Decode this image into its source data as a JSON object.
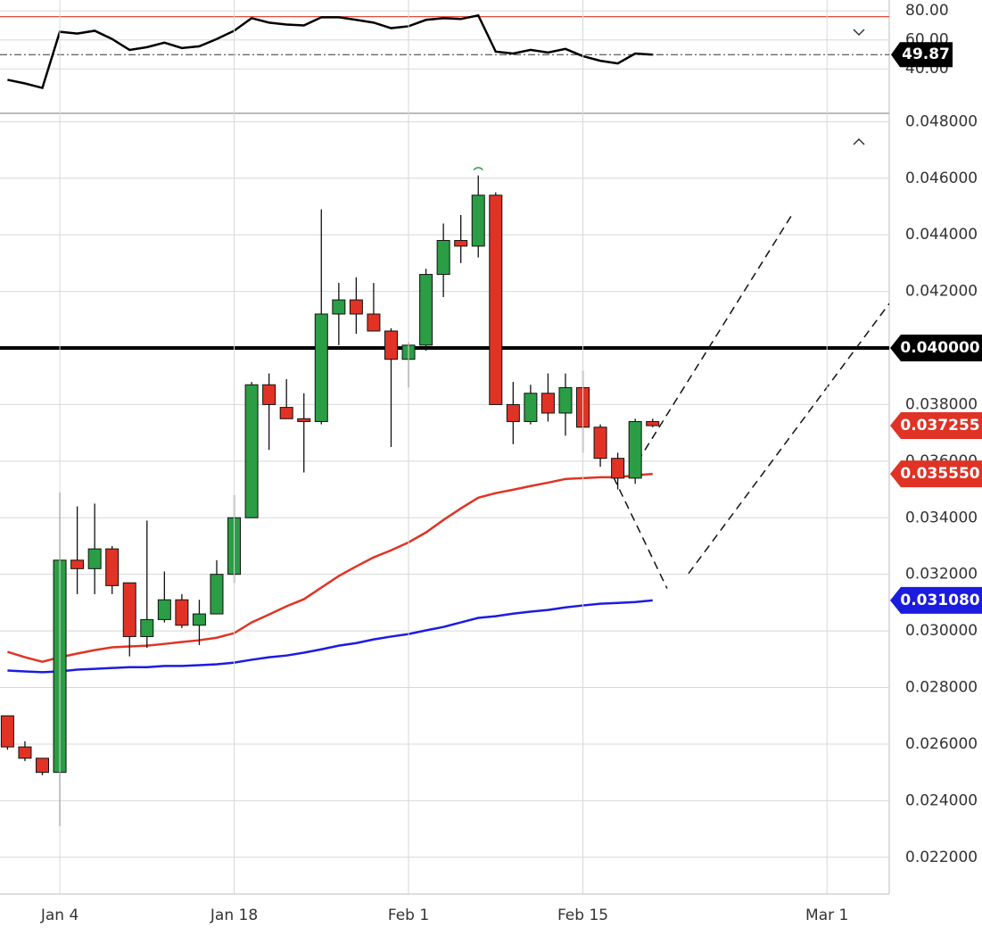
{
  "chart_data": [
    {
      "type": "line",
      "x": [
        -3,
        -2,
        -1,
        0,
        1,
        2,
        3,
        4,
        5,
        6,
        7,
        8,
        9,
        10,
        11,
        12,
        13,
        14,
        15,
        16,
        17,
        18,
        19,
        20,
        21,
        22,
        23,
        24,
        25,
        26,
        27,
        28,
        29,
        30,
        31,
        32,
        33,
        34
      ],
      "series": [
        {
          "color": "#000000",
          "values": [
            32.5,
            30.0,
            26.9,
            65.6,
            64.4,
            66.3,
            60.6,
            53.1,
            55.0,
            58.1,
            54.4,
            55.6,
            60.6,
            66.3,
            75.0,
            71.9,
            70.6,
            70.0,
            75.6,
            75.6,
            73.8,
            71.9,
            68.1,
            69.4,
            73.8,
            75.0,
            74.4,
            76.9,
            51.9,
            50.6,
            53.1,
            51.3,
            53.8,
            48.8,
            45.6,
            43.8,
            50.6,
            49.87
          ]
        }
      ],
      "ylim": [
        9.4,
        87.5
      ],
      "yticks": [
        {
          "value": 40,
          "label": "40.00"
        },
        {
          "value": 60,
          "label": "60.00"
        },
        {
          "value": 80,
          "label": "80.00"
        }
      ],
      "level": {
        "value": 76,
        "color": "#e03325"
      },
      "current": 49.87
    },
    {
      "type": "candlestick",
      "x": [
        -3,
        -2,
        -1,
        0,
        1,
        2,
        3,
        4,
        5,
        6,
        7,
        8,
        9,
        10,
        11,
        12,
        13,
        14,
        15,
        16,
        17,
        18,
        19,
        20,
        21,
        22,
        23,
        24,
        25,
        26,
        27,
        28,
        29,
        30,
        31,
        32,
        33,
        34
      ],
      "open": [
        0.027,
        0.0259,
        0.0255,
        0.025,
        0.0325,
        0.0322,
        0.0329,
        0.0317,
        0.0298,
        0.0304,
        0.0311,
        0.0302,
        0.0306,
        0.032,
        0.034,
        0.0387,
        0.0379,
        0.0375,
        0.0374,
        0.0412,
        0.0417,
        0.0412,
        0.0406,
        0.0396,
        0.0401,
        0.0426,
        0.0438,
        0.0436,
        0.0454,
        0.038,
        0.0374,
        0.0384,
        0.0377,
        0.0386,
        0.0372,
        0.0361,
        0.0354,
        0.0374
      ],
      "high": [
        0.027,
        0.0261,
        0.0255,
        0.0349,
        0.0344,
        0.0345,
        0.033,
        0.0317,
        0.0339,
        0.0321,
        0.0313,
        0.0311,
        0.0325,
        0.0348,
        0.0388,
        0.0391,
        0.0389,
        0.0384,
        0.0449,
        0.0423,
        0.0425,
        0.0423,
        0.0407,
        0.0402,
        0.0428,
        0.0444,
        0.0447,
        0.0461,
        0.0455,
        0.0388,
        0.0387,
        0.0391,
        0.0391,
        0.0392,
        0.0373,
        0.0363,
        0.0375,
        0.0375
      ],
      "low": [
        0.0258,
        0.0254,
        0.0249,
        0.0231,
        0.0313,
        0.0313,
        0.0313,
        0.0291,
        0.0294,
        0.0303,
        0.0301,
        0.0295,
        0.0306,
        0.0317,
        0.034,
        0.0364,
        0.0375,
        0.0356,
        0.0373,
        0.0401,
        0.0405,
        0.0406,
        0.0365,
        0.0386,
        0.0399,
        0.0418,
        0.043,
        0.0432,
        0.038,
        0.0366,
        0.0373,
        0.0374,
        0.0369,
        0.0363,
        0.0358,
        0.035,
        0.0352,
        0.0372
      ],
      "close": [
        0.0259,
        0.0255,
        0.025,
        0.0325,
        0.0322,
        0.0329,
        0.0316,
        0.0298,
        0.0304,
        0.0311,
        0.0302,
        0.0306,
        0.032,
        0.034,
        0.0387,
        0.038,
        0.0375,
        0.0374,
        0.0412,
        0.0417,
        0.0412,
        0.0406,
        0.0396,
        0.0401,
        0.0426,
        0.0438,
        0.0436,
        0.0454,
        0.038,
        0.0374,
        0.0384,
        0.0377,
        0.0386,
        0.0372,
        0.0361,
        0.0354,
        0.0374,
        0.037255
      ],
      "up_color": "#2a9d45",
      "down_color": "#e03325",
      "series": [
        {
          "color": "#e03325",
          "values": [
            0.02926,
            0.02907,
            0.02891,
            0.02907,
            0.0292,
            0.02932,
            0.02942,
            0.02945,
            0.02948,
            0.02954,
            0.02961,
            0.02967,
            0.02976,
            0.02992,
            0.0303,
            0.03058,
            0.03087,
            0.03112,
            0.03153,
            0.03194,
            0.03228,
            0.0326,
            0.03285,
            0.03313,
            0.03348,
            0.03392,
            0.03433,
            0.03471,
            0.03487,
            0.03499,
            0.03512,
            0.03524,
            0.03537,
            0.0354,
            0.03543,
            0.03543,
            0.0355,
            0.03555
          ]
        },
        {
          "color": "#1c1ce0",
          "values": [
            0.0286,
            0.02857,
            0.02854,
            0.02857,
            0.02863,
            0.02866,
            0.02869,
            0.02872,
            0.02872,
            0.02876,
            0.02876,
            0.02879,
            0.02882,
            0.02888,
            0.02898,
            0.02907,
            0.02913,
            0.02923,
            0.02935,
            0.02948,
            0.02957,
            0.0297,
            0.0298,
            0.02989,
            0.03002,
            0.03014,
            0.0303,
            0.03046,
            0.03052,
            0.03061,
            0.03068,
            0.03074,
            0.03083,
            0.0309,
            0.03096,
            0.03099,
            0.03102,
            0.03108
          ]
        }
      ],
      "price_lines": [
        {
          "value": 0.04,
          "label": "0.040000",
          "color": "#000000",
          "line": true
        },
        {
          "value": 0.037255,
          "label": "0.037255",
          "color": "#e03325",
          "line": false
        },
        {
          "value": 0.03555,
          "label": "0.035550",
          "color": "#e03325",
          "line": false
        },
        {
          "value": 0.03108,
          "label": "0.031080",
          "color": "#1c1ce0",
          "line": false
        }
      ],
      "trend_lines": [
        {
          "x": [
            32.74,
            41.94
          ],
          "y": [
            0.03559,
            0.04466
          ]
        },
        {
          "x": [
            31.76,
            34.83
          ],
          "y": [
            0.03543,
            0.0315
          ]
        },
        {
          "x": [
            36.06,
            47.57
          ],
          "y": [
            0.03203,
            0.04157
          ]
        }
      ],
      "xlim": [
        -3.43,
        47.57
      ],
      "ylim": [
        0.0207,
        0.0482
      ],
      "xticks": [
        {
          "value": 0,
          "label": "Jan 4"
        },
        {
          "value": 10,
          "label": "Jan 18"
        },
        {
          "value": 20,
          "label": "Feb 1"
        },
        {
          "value": 30,
          "label": "Feb 15"
        },
        {
          "value": 44,
          "label": "Mar 1"
        }
      ],
      "yticks": [
        {
          "value": 0.022,
          "label": "0.022000"
        },
        {
          "value": 0.024,
          "label": "0.024000"
        },
        {
          "value": 0.026,
          "label": "0.026000"
        },
        {
          "value": 0.028,
          "label": "0.028000"
        },
        {
          "value": 0.03,
          "label": "0.030000"
        },
        {
          "value": 0.032,
          "label": "0.032000"
        },
        {
          "value": 0.034,
          "label": "0.034000"
        },
        {
          "value": 0.036,
          "label": "0.036000"
        },
        {
          "value": 0.038,
          "label": "0.038000"
        },
        {
          "value": 0.04,
          "label": "0.040000"
        },
        {
          "value": 0.042,
          "label": "0.042000"
        },
        {
          "value": 0.044,
          "label": "0.044000"
        },
        {
          "value": 0.046,
          "label": "0.046000"
        },
        {
          "value": 0.048,
          "label": "0.048000"
        }
      ],
      "grid": true
    }
  ]
}
